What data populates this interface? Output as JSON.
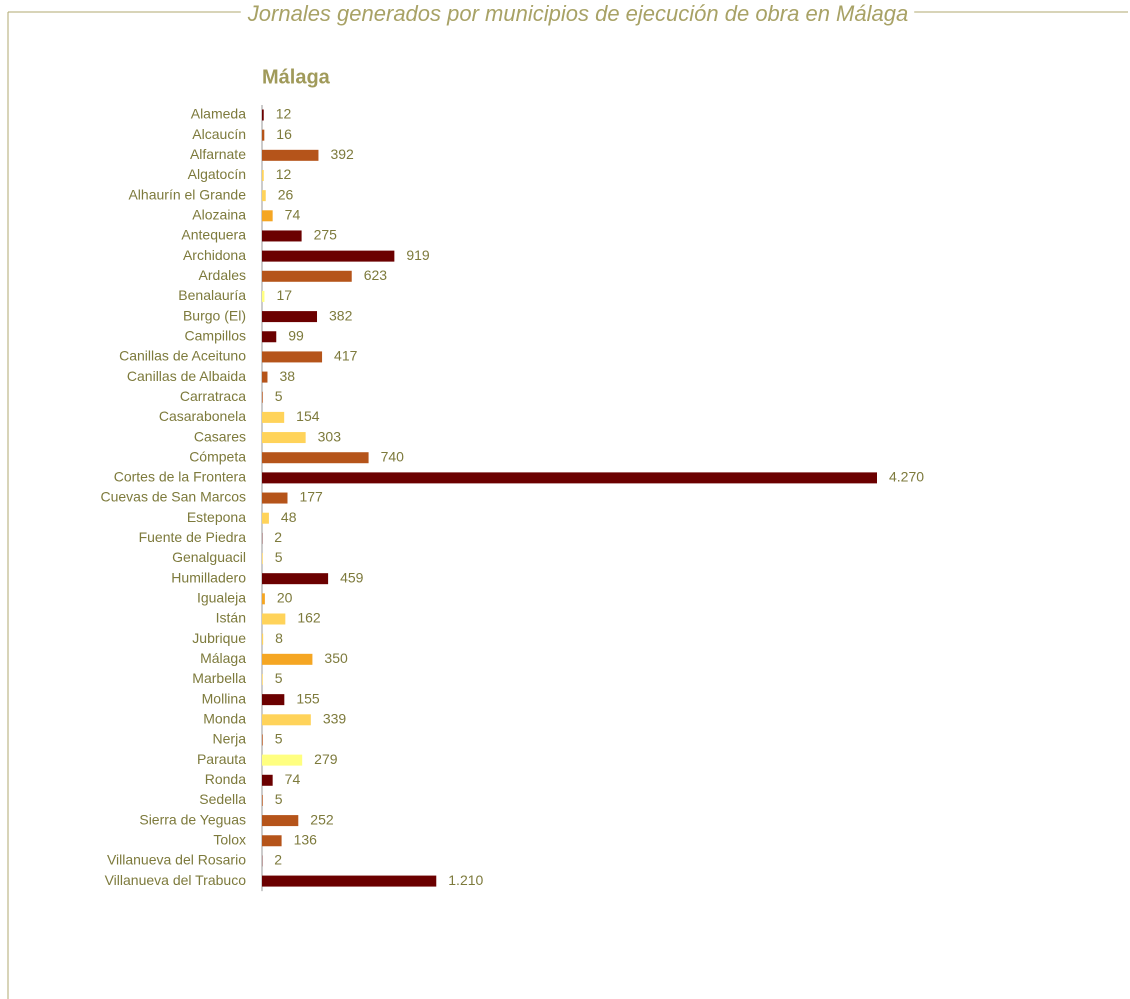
{
  "chart_data": {
    "type": "hbar",
    "title": "Jornales generados por municipios de ejecución de obra en Málaga",
    "subtitle": "Málaga",
    "categories": [
      "Alameda",
      "Alcaucín",
      "Alfarnate",
      "Algatocín",
      "Alhaurín el Grande",
      "Alozaina",
      "Antequera",
      "Archidona",
      "Ardales",
      "Benalauría",
      "Burgo (El)",
      "Campillos",
      "Canillas de Aceituno",
      "Canillas de Albaida",
      "Carratraca",
      "Casarabonela",
      "Casares",
      "Cómpeta",
      "Cortes de la Frontera",
      "Cuevas de San Marcos",
      "Estepona",
      "Fuente de Piedra",
      "Genalguacil",
      "Humilladero",
      "Igualeja",
      "Istán",
      "Jubrique",
      "Málaga",
      "Marbella",
      "Mollina",
      "Monda",
      "Nerja",
      "Parauta",
      "Ronda",
      "Sedella",
      "Sierra de Yeguas",
      "Tolox",
      "Villanueva del Rosario",
      "Villanueva del Trabuco"
    ],
    "values": [
      12,
      16,
      392,
      12,
      26,
      74,
      275,
      919,
      623,
      17,
      382,
      99,
      417,
      38,
      5,
      154,
      303,
      740,
      4270,
      177,
      48,
      2,
      5,
      459,
      20,
      162,
      8,
      350,
      5,
      155,
      339,
      5,
      279,
      74,
      5,
      252,
      136,
      2,
      1210
    ],
    "value_labels": [
      "12",
      "16",
      "392",
      "12",
      "26",
      "74",
      "275",
      "919",
      "623",
      "17",
      "382",
      "99",
      "417",
      "38",
      "5",
      "154",
      "303",
      "740",
      "4.270",
      "177",
      "48",
      "2",
      "5",
      "459",
      "20",
      "162",
      "8",
      "350",
      "5",
      "155",
      "339",
      "5",
      "279",
      "74",
      "5",
      "252",
      "136",
      "2",
      "1.210"
    ],
    "colors": [
      "#6b0000",
      "#b5541a",
      "#b5541a",
      "#ffd35a",
      "#ffd35a",
      "#f5a623",
      "#6b0000",
      "#6b0000",
      "#b5541a",
      "#ffff80",
      "#6b0000",
      "#6b0000",
      "#b5541a",
      "#b5541a",
      "#b5541a",
      "#ffd35a",
      "#ffd35a",
      "#b5541a",
      "#6b0000",
      "#b5541a",
      "#ffd35a",
      "#6b0000",
      "#ffd35a",
      "#6b0000",
      "#f5a623",
      "#ffd35a",
      "#ffd35a",
      "#f5a623",
      "#ffd35a",
      "#6b0000",
      "#ffd35a",
      "#b5541a",
      "#ffff80",
      "#6b0000",
      "#b5541a",
      "#b5541a",
      "#b5541a",
      "#6b0000",
      "#6b0000"
    ]
  }
}
